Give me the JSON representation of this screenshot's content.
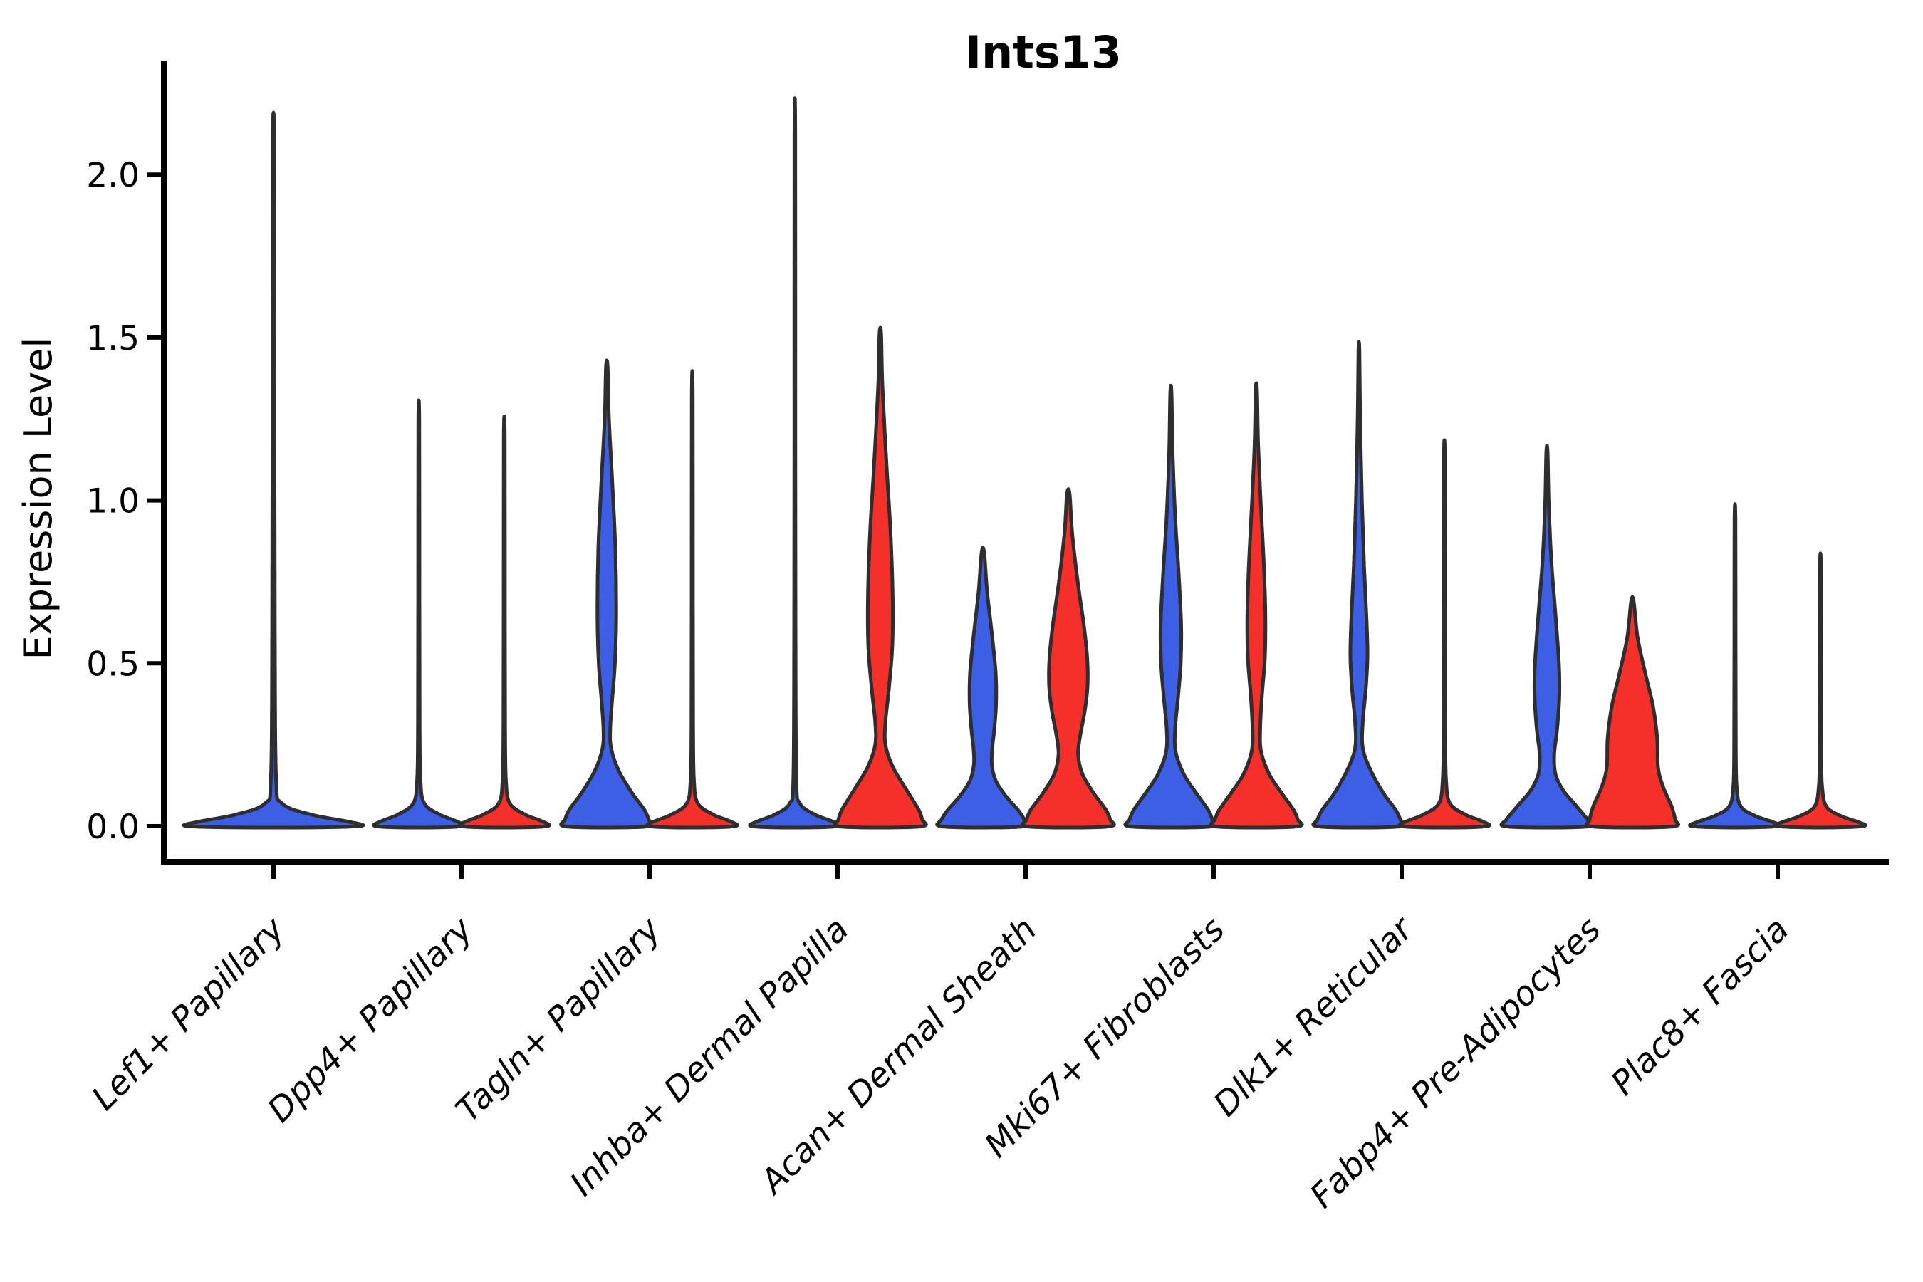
{
  "colors": {
    "violin_blue": "#3C5FE6",
    "violin_red": "#F5302B",
    "outline": "#2E2E2E",
    "axis": "#000000",
    "background": "#FFFFFF"
  },
  "chart_data": {
    "type": "violin",
    "title": "Ints13",
    "ylabel": "Expression Level",
    "xlabel": "",
    "grid": false,
    "legend_position": "none",
    "ylim": [
      0,
      2.35
    ],
    "yticks": [
      {
        "value": 0.0,
        "label": "0.0"
      },
      {
        "value": 0.5,
        "label": "0.5"
      },
      {
        "value": 1.0,
        "label": "1.0"
      },
      {
        "value": 1.5,
        "label": "1.5"
      },
      {
        "value": 2.0,
        "label": "2.0"
      }
    ],
    "categories": [
      "Lef1+ Papillary",
      "Dpp4+ Papillary",
      "Tagln+ Papillary",
      "Inhba+ Dermal Papilla",
      "Acan+ Dermal Sheath",
      "Mki67+ Fibroblasts",
      "Dlk1+ Reticular",
      "Fabp4+ Pre-Adipocytes",
      "Plac8+ Fascia"
    ],
    "violins": [
      {
        "category_index": 0,
        "category": "Lef1+ Papillary",
        "side": "single",
        "color_key": "blue",
        "max_expression": 2.08,
        "profile": [
          [
            2.08,
            0.01
          ],
          [
            1.2,
            0.012
          ],
          [
            0.6,
            0.016
          ],
          [
            0.15,
            0.03
          ],
          [
            0.07,
            0.1
          ],
          [
            0.035,
            0.45
          ],
          [
            0.015,
            0.85
          ],
          [
            0,
            1
          ]
        ]
      },
      {
        "category_index": 1,
        "category": "Dpp4+ Papillary",
        "side": "left",
        "color_key": "blue",
        "max_expression": 1.24,
        "profile": [
          [
            1.24,
            0.012
          ],
          [
            0.7,
            0.015
          ],
          [
            0.3,
            0.02
          ],
          [
            0.14,
            0.04
          ],
          [
            0.07,
            0.13
          ],
          [
            0.035,
            0.5
          ],
          [
            0.015,
            0.88
          ],
          [
            0,
            1
          ]
        ]
      },
      {
        "category_index": 1,
        "category": "Dpp4+ Papillary",
        "side": "right",
        "color_key": "red",
        "max_expression": 1.19,
        "profile": [
          [
            1.19,
            0.012
          ],
          [
            0.65,
            0.015
          ],
          [
            0.3,
            0.02
          ],
          [
            0.14,
            0.04
          ],
          [
            0.07,
            0.13
          ],
          [
            0.035,
            0.5
          ],
          [
            0.015,
            0.88
          ],
          [
            0,
            1
          ]
        ]
      },
      {
        "category_index": 2,
        "category": "Tagln+ Papillary",
        "side": "left",
        "color_key": "blue",
        "max_expression": 1.41,
        "profile": [
          [
            1.41,
            0.02
          ],
          [
            1.25,
            0.05
          ],
          [
            1.05,
            0.13
          ],
          [
            0.85,
            0.2
          ],
          [
            0.65,
            0.22
          ],
          [
            0.5,
            0.19
          ],
          [
            0.38,
            0.12
          ],
          [
            0.3,
            0.08
          ],
          [
            0.24,
            0.1
          ],
          [
            0.17,
            0.28
          ],
          [
            0.1,
            0.6
          ],
          [
            0.05,
            0.88
          ],
          [
            0.02,
            0.98
          ],
          [
            0,
            1
          ]
        ]
      },
      {
        "category_index": 2,
        "category": "Tagln+ Papillary",
        "side": "right",
        "color_key": "red",
        "max_expression": 1.32,
        "profile": [
          [
            1.32,
            0.012
          ],
          [
            0.7,
            0.015
          ],
          [
            0.3,
            0.02
          ],
          [
            0.14,
            0.04
          ],
          [
            0.07,
            0.13
          ],
          [
            0.035,
            0.5
          ],
          [
            0.015,
            0.88
          ],
          [
            0,
            1
          ]
        ]
      },
      {
        "category_index": 3,
        "category": "Inhba+ Dermal Papilla",
        "side": "left",
        "color_key": "blue",
        "max_expression": 2.12,
        "profile": [
          [
            2.12,
            0.01
          ],
          [
            1.2,
            0.012
          ],
          [
            0.6,
            0.016
          ],
          [
            0.15,
            0.035
          ],
          [
            0.07,
            0.12
          ],
          [
            0.035,
            0.48
          ],
          [
            0.015,
            0.87
          ],
          [
            0,
            1
          ]
        ]
      },
      {
        "category_index": 3,
        "category": "Inhba+ Dermal Papilla",
        "side": "right",
        "color_key": "red",
        "max_expression": 1.51,
        "profile": [
          [
            1.51,
            0.02
          ],
          [
            1.35,
            0.05
          ],
          [
            1.1,
            0.15
          ],
          [
            0.9,
            0.24
          ],
          [
            0.7,
            0.29
          ],
          [
            0.55,
            0.28
          ],
          [
            0.42,
            0.2
          ],
          [
            0.32,
            0.12
          ],
          [
            0.25,
            0.12
          ],
          [
            0.18,
            0.3
          ],
          [
            0.11,
            0.62
          ],
          [
            0.05,
            0.9
          ],
          [
            0.02,
            0.98
          ],
          [
            0,
            1
          ]
        ]
      },
      {
        "category_index": 4,
        "category": "Acan+ Dermal Sheath",
        "side": "left",
        "color_key": "blue",
        "max_expression": 0.84,
        "profile": [
          [
            0.84,
            0.03
          ],
          [
            0.72,
            0.1
          ],
          [
            0.58,
            0.22
          ],
          [
            0.47,
            0.3
          ],
          [
            0.38,
            0.31
          ],
          [
            0.3,
            0.27
          ],
          [
            0.24,
            0.22
          ],
          [
            0.19,
            0.21
          ],
          [
            0.14,
            0.3
          ],
          [
            0.09,
            0.55
          ],
          [
            0.05,
            0.82
          ],
          [
            0.02,
            0.97
          ],
          [
            0,
            1
          ]
        ]
      },
      {
        "category_index": 4,
        "category": "Acan+ Dermal Sheath",
        "side": "right",
        "color_key": "red",
        "max_expression": 1.02,
        "profile": [
          [
            1.02,
            0.03
          ],
          [
            0.9,
            0.09
          ],
          [
            0.75,
            0.22
          ],
          [
            0.62,
            0.36
          ],
          [
            0.52,
            0.44
          ],
          [
            0.43,
            0.45
          ],
          [
            0.35,
            0.38
          ],
          [
            0.28,
            0.28
          ],
          [
            0.22,
            0.23
          ],
          [
            0.16,
            0.33
          ],
          [
            0.1,
            0.6
          ],
          [
            0.05,
            0.88
          ],
          [
            0.02,
            0.98
          ],
          [
            0,
            1
          ]
        ]
      },
      {
        "category_index": 5,
        "category": "Mki67+ Fibroblasts",
        "side": "left",
        "color_key": "blue",
        "max_expression": 1.33,
        "profile": [
          [
            1.33,
            0.015
          ],
          [
            1.15,
            0.04
          ],
          [
            0.95,
            0.1
          ],
          [
            0.78,
            0.18
          ],
          [
            0.62,
            0.24
          ],
          [
            0.5,
            0.23
          ],
          [
            0.4,
            0.17
          ],
          [
            0.3,
            0.1
          ],
          [
            0.23,
            0.11
          ],
          [
            0.16,
            0.3
          ],
          [
            0.1,
            0.6
          ],
          [
            0.05,
            0.87
          ],
          [
            0.02,
            0.97
          ],
          [
            0,
            1
          ]
        ]
      },
      {
        "category_index": 5,
        "category": "Mki67+ Fibroblasts",
        "side": "right",
        "color_key": "red",
        "max_expression": 1.34,
        "profile": [
          [
            1.34,
            0.015
          ],
          [
            1.18,
            0.04
          ],
          [
            1.0,
            0.1
          ],
          [
            0.82,
            0.17
          ],
          [
            0.66,
            0.21
          ],
          [
            0.52,
            0.2
          ],
          [
            0.4,
            0.13
          ],
          [
            0.3,
            0.09
          ],
          [
            0.23,
            0.11
          ],
          [
            0.16,
            0.3
          ],
          [
            0.1,
            0.6
          ],
          [
            0.05,
            0.87
          ],
          [
            0.02,
            0.97
          ],
          [
            0,
            1
          ]
        ]
      },
      {
        "category_index": 6,
        "category": "Dlk1+ Reticular",
        "side": "left",
        "color_key": "blue",
        "max_expression": 1.46,
        "profile": [
          [
            1.46,
            0.012
          ],
          [
            1.25,
            0.03
          ],
          [
            1.0,
            0.07
          ],
          [
            0.8,
            0.12
          ],
          [
            0.63,
            0.18
          ],
          [
            0.52,
            0.2
          ],
          [
            0.42,
            0.16
          ],
          [
            0.32,
            0.09
          ],
          [
            0.24,
            0.09
          ],
          [
            0.17,
            0.28
          ],
          [
            0.1,
            0.58
          ],
          [
            0.05,
            0.86
          ],
          [
            0.02,
            0.97
          ],
          [
            0,
            1
          ]
        ]
      },
      {
        "category_index": 6,
        "category": "Dlk1+ Reticular",
        "side": "right",
        "color_key": "red",
        "max_expression": 1.12,
        "profile": [
          [
            1.12,
            0.012
          ],
          [
            0.6,
            0.015
          ],
          [
            0.28,
            0.02
          ],
          [
            0.14,
            0.04
          ],
          [
            0.07,
            0.13
          ],
          [
            0.035,
            0.5
          ],
          [
            0.015,
            0.88
          ],
          [
            0,
            1
          ]
        ]
      },
      {
        "category_index": 7,
        "category": "Fabp4+ Pre-Adipocytes",
        "side": "left",
        "color_key": "blue",
        "max_expression": 1.15,
        "profile": [
          [
            1.15,
            0.015
          ],
          [
            1.0,
            0.04
          ],
          [
            0.82,
            0.1
          ],
          [
            0.65,
            0.2
          ],
          [
            0.5,
            0.28
          ],
          [
            0.4,
            0.29
          ],
          [
            0.3,
            0.24
          ],
          [
            0.22,
            0.17
          ],
          [
            0.16,
            0.2
          ],
          [
            0.11,
            0.38
          ],
          [
            0.06,
            0.7
          ],
          [
            0.02,
            0.95
          ],
          [
            0,
            1
          ]
        ]
      },
      {
        "category_index": 7,
        "category": "Fabp4+ Pre-Adipocytes",
        "side": "right",
        "color_key": "red",
        "max_expression": 0.69,
        "profile": [
          [
            0.69,
            0.03
          ],
          [
            0.58,
            0.12
          ],
          [
            0.47,
            0.3
          ],
          [
            0.37,
            0.48
          ],
          [
            0.27,
            0.58
          ],
          [
            0.18,
            0.6
          ],
          [
            0.12,
            0.72
          ],
          [
            0.06,
            0.92
          ],
          [
            0.02,
            1.0
          ],
          [
            0,
            1
          ]
        ]
      },
      {
        "category_index": 8,
        "category": "Plac8+ Fascia",
        "side": "left",
        "color_key": "blue",
        "max_expression": 0.94,
        "profile": [
          [
            0.94,
            0.012
          ],
          [
            0.55,
            0.015
          ],
          [
            0.25,
            0.02
          ],
          [
            0.12,
            0.04
          ],
          [
            0.06,
            0.14
          ],
          [
            0.03,
            0.5
          ],
          [
            0.013,
            0.88
          ],
          [
            0,
            1
          ]
        ]
      },
      {
        "category_index": 8,
        "category": "Plac8+ Fascia",
        "side": "right",
        "color_key": "red",
        "max_expression": 0.8,
        "profile": [
          [
            0.8,
            0.012
          ],
          [
            0.5,
            0.015
          ],
          [
            0.22,
            0.02
          ],
          [
            0.12,
            0.04
          ],
          [
            0.06,
            0.14
          ],
          [
            0.03,
            0.5
          ],
          [
            0.013,
            0.88
          ],
          [
            0,
            1
          ]
        ]
      }
    ]
  }
}
